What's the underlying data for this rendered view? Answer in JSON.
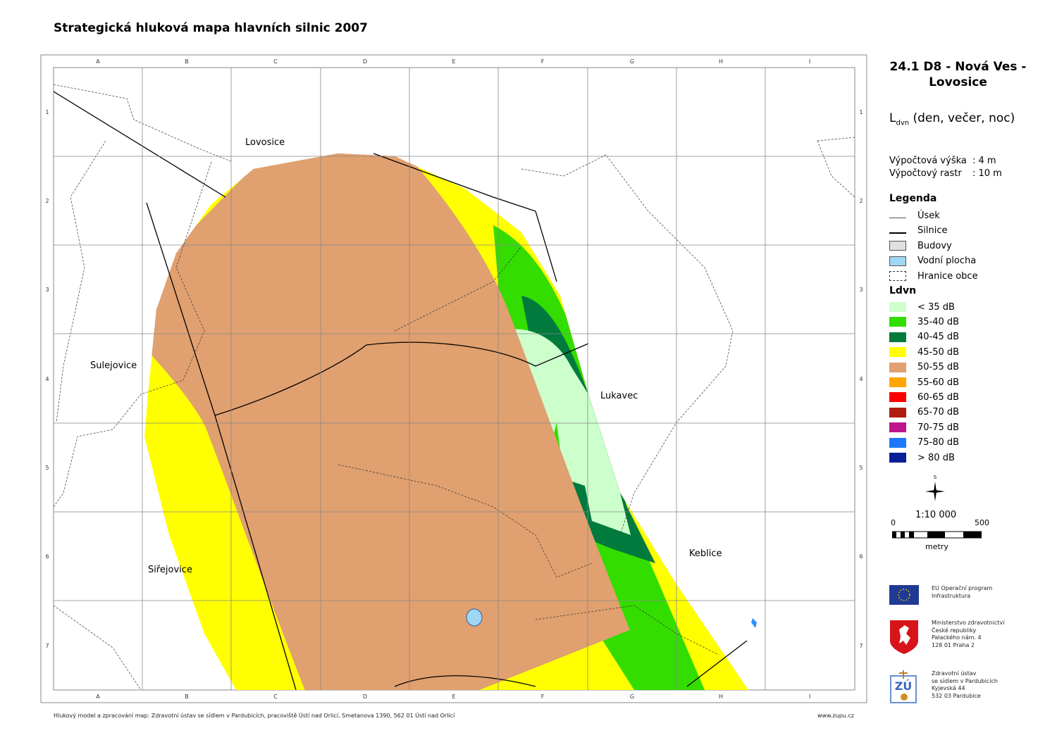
{
  "title": "Strategická hluková mapa hlavních silnic 2007",
  "map": {
    "columns": [
      "A",
      "B",
      "C",
      "D",
      "E",
      "F",
      "G",
      "H",
      "I"
    ],
    "rows": [
      "1",
      "2",
      "3",
      "4",
      "5",
      "6",
      "7"
    ],
    "places": [
      {
        "name": "Lovosice"
      },
      {
        "name": "Sulejovice"
      },
      {
        "name": "Lukavec"
      },
      {
        "name": "Keblice"
      },
      {
        "name": "Siřejovice"
      }
    ]
  },
  "sidebar": {
    "map_title": "24.1  D8 - Nová Ves - Lovosice",
    "indicator": "L",
    "indicator_sub": "dvn",
    "indicator_desc": " (den, večer, noc)",
    "calc_height_label": "Výpočtová výška",
    "calc_height_value": ":   4 m",
    "calc_grid_label": "Výpočtový rastr",
    "calc_grid_value": ":   10 m",
    "legend_title": "Legenda",
    "legend_items": [
      {
        "label": "Úsek",
        "kind": "thin-line"
      },
      {
        "label": "Silnice",
        "kind": "line"
      },
      {
        "label": "Budovy",
        "kind": "box",
        "color": "#e0e0e0"
      },
      {
        "label": "Vodní plocha",
        "kind": "box",
        "color": "#9fd7f5"
      },
      {
        "label": "Hranice obce",
        "kind": "dashed-box"
      }
    ],
    "noise_title": "Ldvn",
    "noise_classes": [
      {
        "label": "< 35 dB",
        "color": "#ccffcc"
      },
      {
        "label": "35-40 dB",
        "color": "#33dd00"
      },
      {
        "label": "40-45 dB",
        "color": "#007a3d"
      },
      {
        "label": "45-50 dB",
        "color": "#ffff00"
      },
      {
        "label": "50-55 dB",
        "color": "#e0a070"
      },
      {
        "label": "55-60 dB",
        "color": "#ffa500"
      },
      {
        "label": "60-65 dB",
        "color": "#ff0000"
      },
      {
        "label": "65-70 dB",
        "color": "#b01c10"
      },
      {
        "label": "70-75 dB",
        "color": "#c0148c"
      },
      {
        "label": "75-80 dB",
        "color": "#1e78ff"
      },
      {
        "label": "> 80 dB",
        "color": "#0a1e96"
      }
    ],
    "north_label": "S",
    "scale": "1:10 000",
    "scale_min": "0",
    "scale_max": "500",
    "scale_unit": "metry"
  },
  "organizations": [
    {
      "logo": "eu-flag",
      "lines": [
        "EU Operační program",
        "Infrastruktura"
      ]
    },
    {
      "logo": "czech-coat-of-arms",
      "lines": [
        "Ministerstvo zdravotnictví",
        "České republiky",
        "Palackého nám. 4",
        "128 01 Praha 2"
      ]
    },
    {
      "logo": "zu-logo",
      "lines": [
        "Zdravotní ústav",
        "se sídlem v Pardubicích",
        "Kyjevská 44",
        "532 03 Pardubice"
      ]
    }
  ],
  "footer": {
    "credit": "Hlukový model a zpracování map: Zdravotní ústav se sídlem v Pardubicích, pracoviště Ústí nad Orlicí, Smetanova 1390, 562 01 Ústí nad Orlicí",
    "website": "www.zupu.cz"
  }
}
